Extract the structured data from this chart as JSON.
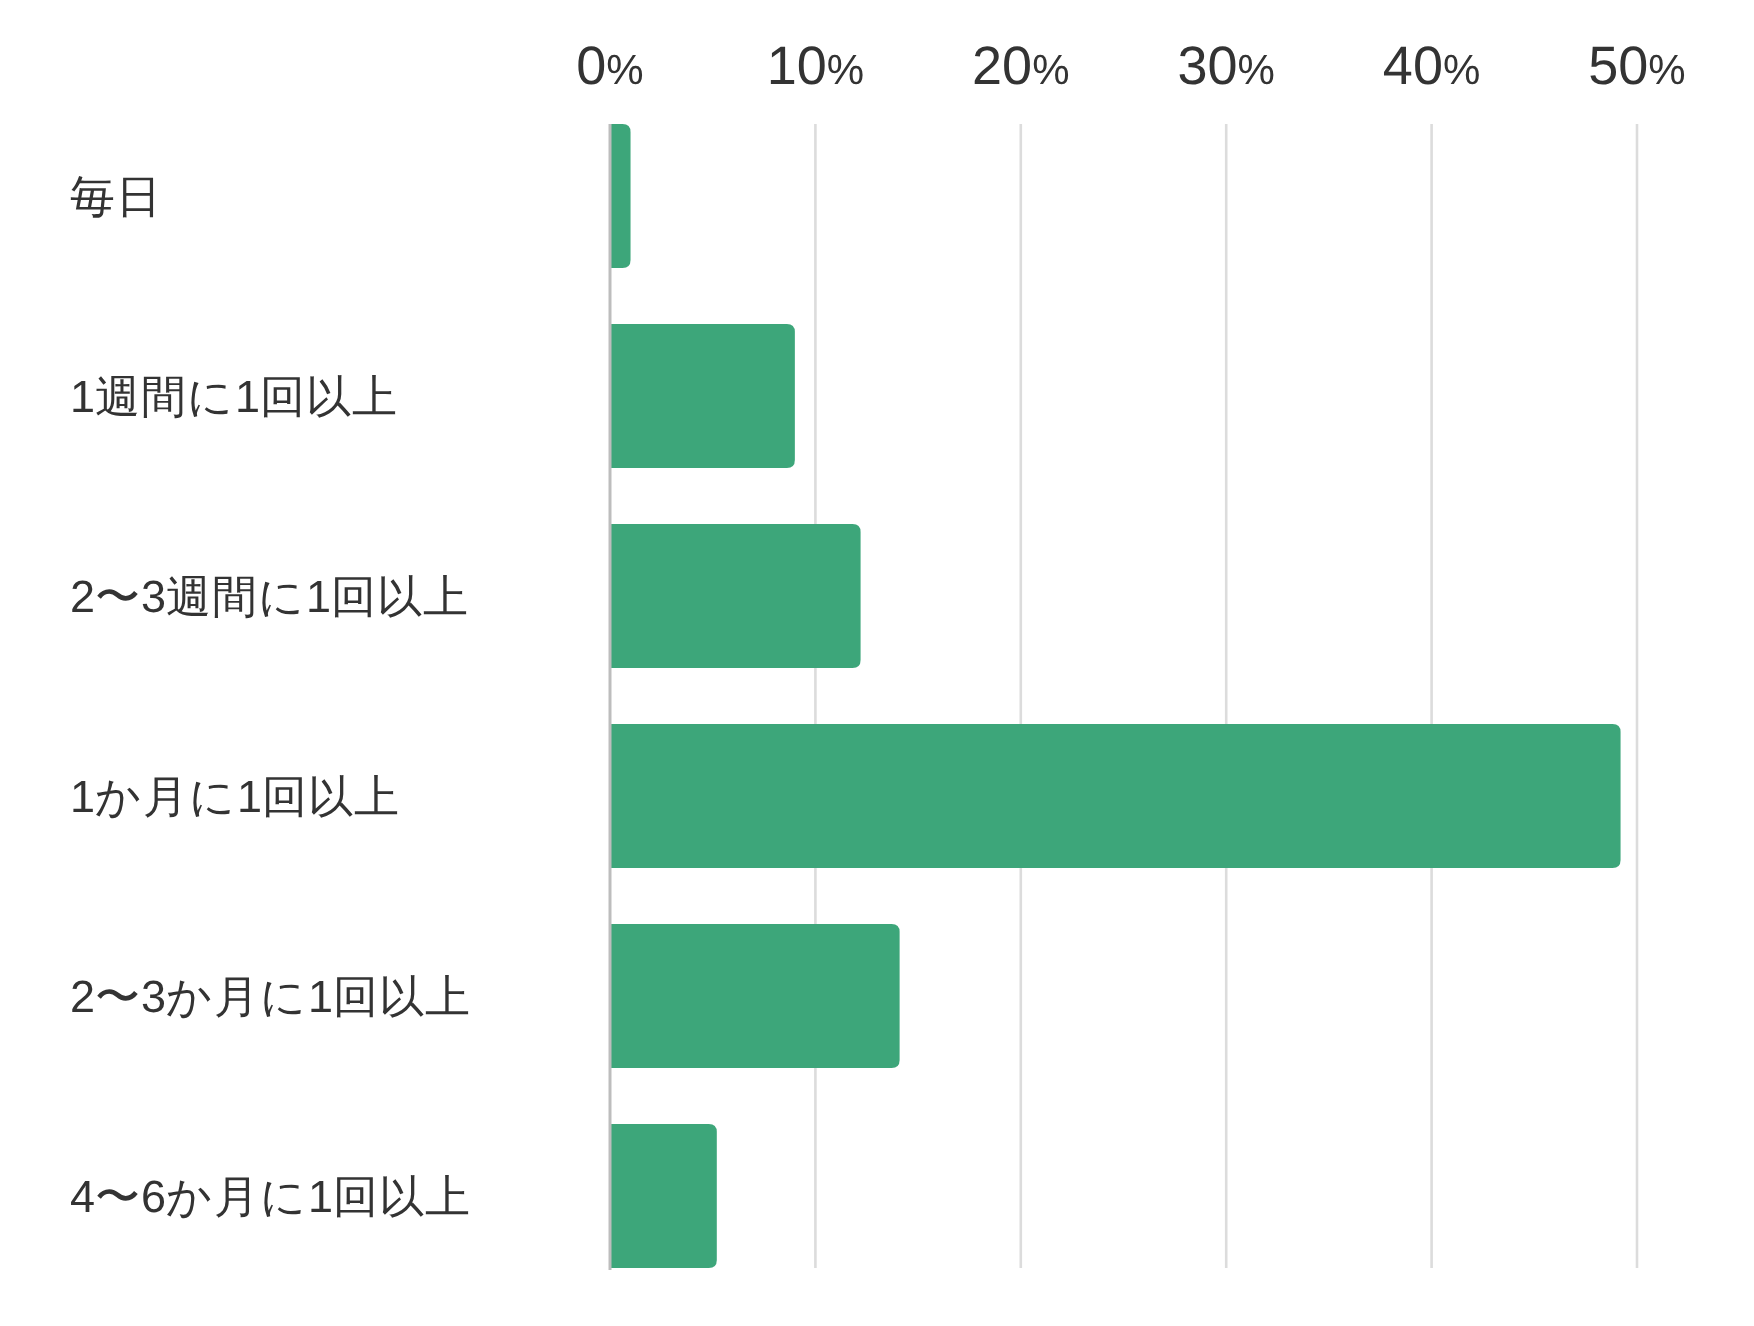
{
  "chart_data": {
    "type": "bar",
    "orientation": "horizontal",
    "categories": [
      "毎日",
      "1週間に1回以上",
      "2〜3週間に1回以上",
      "1か月に1回以上",
      "2〜3か月に1回以上",
      "4〜6か月に1回以上"
    ],
    "values": [
      1.0,
      9.0,
      12.2,
      49.2,
      14.1,
      5.2
    ],
    "color": "#3da67a",
    "xlim": [
      0,
      50
    ],
    "xticks": [
      {
        "value": 0,
        "label": "0%"
      },
      {
        "value": 10,
        "label": "10%"
      },
      {
        "value": 20,
        "label": "20%"
      },
      {
        "value": 30,
        "label": "30%"
      },
      {
        "value": 40,
        "label": "40%"
      },
      {
        "value": 50,
        "label": "50%"
      }
    ],
    "grid": "x"
  }
}
